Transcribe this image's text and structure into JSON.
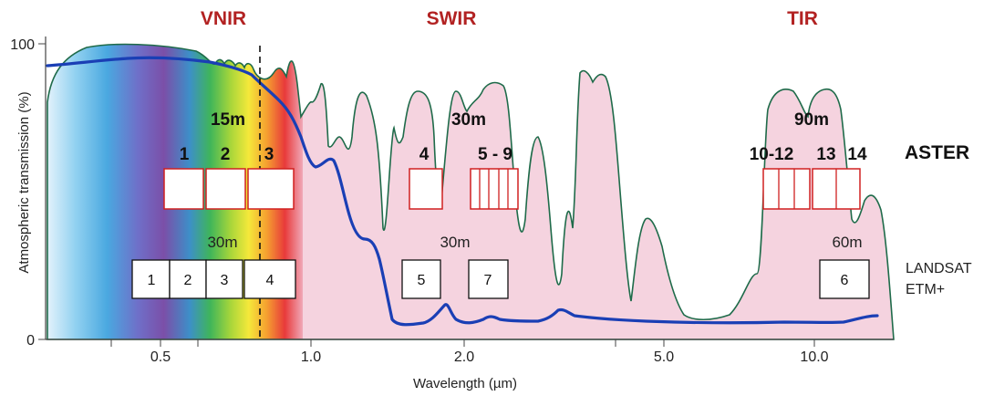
{
  "regions": {
    "vnir": "VNIR",
    "swir": "SWIR",
    "tir": "TIR"
  },
  "axes": {
    "ylabel": "Atmospheric transmission (%)",
    "xlabel": "Wavelength (µm)",
    "y_ticks": [
      "100",
      "0"
    ],
    "x_ticks": [
      "0.5",
      "1.0",
      "2.0",
      "5.0",
      "10.0"
    ]
  },
  "aster": {
    "sensor_label": "ASTER",
    "resolutions": {
      "vnir": "15m",
      "swir": "30m",
      "tir": "90m"
    },
    "band_labels": {
      "b1": "1",
      "b2": "2",
      "b3": "3",
      "b4": "4",
      "b5_9": "5 - 9",
      "b10_12": "10-12",
      "b13": "13",
      "b14": "14"
    }
  },
  "landsat": {
    "sensor_label_line1": "LANDSAT",
    "sensor_label_line2": "ETM+",
    "resolutions": {
      "vnir": "30m",
      "swir": "30m",
      "tir": "60m"
    },
    "band_labels": {
      "b1": "1",
      "b2": "2",
      "b3": "3",
      "b4": "4",
      "b5": "5",
      "b7": "7",
      "b6": "6"
    }
  },
  "colors": {
    "transmission_fill": "#f5d3df",
    "transmission_outline": "#1f6b4a",
    "blue_curve": "#1a3fb5",
    "aster_box": "#d02020",
    "region_title": "#b22222"
  }
}
